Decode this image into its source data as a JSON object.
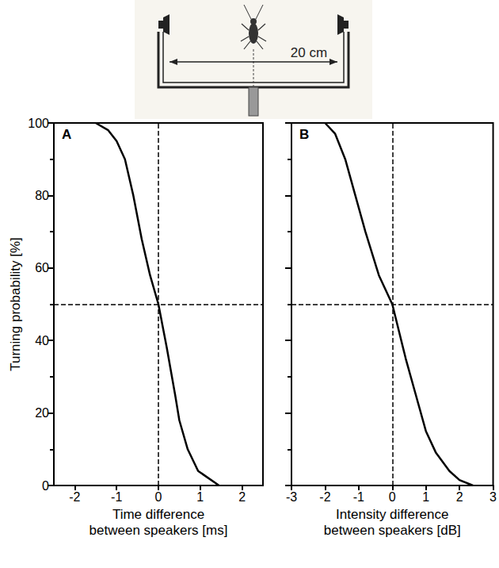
{
  "diagram": {
    "distance_label": "20 cm"
  },
  "chart_data": [
    {
      "type": "line",
      "panel": "A",
      "x_label": "Time difference\nbetween speakers [ms]",
      "y_label": "Turning probability [%]",
      "x": [
        -1.5,
        -1.2,
        -1.0,
        -0.8,
        -0.6,
        -0.4,
        -0.2,
        0,
        0.2,
        0.4,
        0.5,
        0.7,
        0.95,
        1.45
      ],
      "values": [
        100,
        98,
        95,
        90,
        80,
        68,
        58,
        50,
        38,
        25,
        18,
        10,
        4,
        0
      ],
      "color": "#000000",
      "xlim": [
        -2.5,
        2.5
      ],
      "xticks": [
        -2,
        -1,
        0,
        1,
        2
      ],
      "ylim": [
        0,
        100
      ],
      "yticks": [
        0,
        20,
        40,
        60,
        80,
        100
      ],
      "reference_x": 0,
      "reference_y": 50,
      "grid": false
    },
    {
      "type": "line",
      "panel": "B",
      "x_label": "Intensity difference\nbetween speakers [dB]",
      "x": [
        -2.0,
        -1.7,
        -1.4,
        -1.1,
        -0.8,
        -0.4,
        0,
        0.4,
        0.7,
        1.0,
        1.3,
        1.7,
        2.0,
        2.4
      ],
      "values": [
        100,
        97,
        90,
        80,
        70,
        58,
        50,
        35,
        25,
        15,
        9,
        4,
        1.5,
        0
      ],
      "color": "#000000",
      "xlim": [
        -3,
        3
      ],
      "xticks": [
        -3,
        -2,
        -1,
        0,
        1,
        2,
        3
      ],
      "ylim": [
        0,
        100
      ],
      "yticks": [
        0,
        20,
        40,
        60,
        80,
        100
      ],
      "reference_x": 0,
      "reference_y": 50,
      "tick_labels": "x",
      "grid": false
    }
  ]
}
